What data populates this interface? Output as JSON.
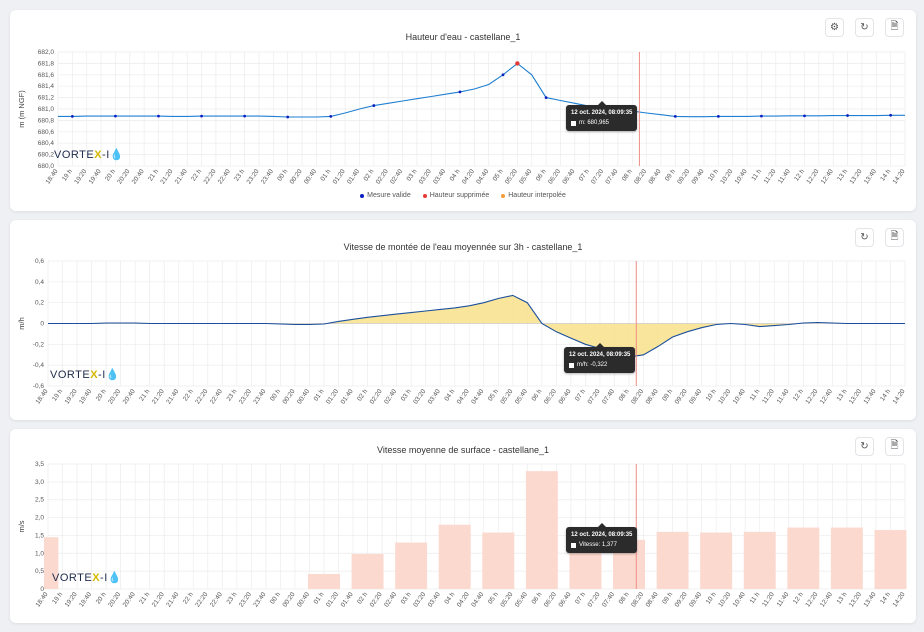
{
  "toolbar": {
    "settings_icon": "gear-icon",
    "reset_icon": "refresh-icon",
    "export_icon": "document-icon"
  },
  "logo": {
    "part1": "VORTE",
    "part2": "X",
    "part3": "-I",
    "drop": "💧"
  },
  "colors": {
    "line": "#1f7fd1",
    "valid": "#0a1fbf",
    "deleted": "#e53935",
    "interp": "#f39c3c",
    "area": "#f8e08a",
    "bar": "#fcd9cf",
    "cursor": "#ef8c86"
  },
  "tooltips": {
    "height": {
      "date": "12 oct. 2024, 08:09:35",
      "value": "m: 680,965"
    },
    "rise": {
      "date": "12 oct. 2024, 08:09:35",
      "value": "m/h: -0,322"
    },
    "speed": {
      "date": "12 oct. 2024, 08:09:35",
      "value": "Vitesse: 1,377"
    }
  },
  "chart_data": [
    {
      "type": "line",
      "title": "Hauteur d'eau - castellane_1",
      "ylabel": "m (m NGF)",
      "ylim": [
        680.0,
        682.0
      ],
      "yticks": [
        "680,0",
        "680,2",
        "680,4",
        "680,6",
        "680,8",
        "681,0",
        "681,2",
        "681,4",
        "681,6",
        "681,8",
        "682,0"
      ],
      "categories": [
        "18:40",
        "19 h",
        "19:20",
        "19:40",
        "20 h",
        "20:20",
        "20:40",
        "21 h",
        "21:20",
        "21:40",
        "22 h",
        "22:20",
        "22:40",
        "23 h",
        "23:20",
        "23:40",
        "00 h",
        "00:20",
        "00:40",
        "01 h",
        "01:20",
        "01:40",
        "02 h",
        "02:20",
        "02:40",
        "03 h",
        "03:20",
        "03:40",
        "04 h",
        "04:20",
        "04:40",
        "05 h",
        "05:20",
        "05:40",
        "06 h",
        "06:20",
        "06:40",
        "07 h",
        "07:20",
        "07:40",
        "08 h",
        "08:20",
        "08:40",
        "09 h",
        "09:20",
        "09:40",
        "10 h",
        "10:20",
        "10:40",
        "11 h",
        "11:20",
        "11:40",
        "12 h",
        "12:20",
        "12:40",
        "13 h",
        "13:20",
        "13:40",
        "14 h",
        "14:20"
      ],
      "series": [
        {
          "name": "Hauteur",
          "values": [
            680.87,
            680.87,
            680.875,
            680.875,
            680.875,
            680.875,
            680.875,
            680.875,
            680.87,
            680.87,
            680.875,
            680.875,
            680.875,
            680.875,
            680.875,
            680.87,
            680.86,
            680.86,
            680.86,
            680.87,
            680.93,
            681.0,
            681.06,
            681.1,
            681.14,
            681.18,
            681.22,
            681.26,
            681.3,
            681.35,
            681.43,
            681.6,
            681.8,
            681.6,
            681.2,
            681.15,
            681.1,
            681.05,
            681.0,
            680.98,
            680.965,
            680.93,
            680.9,
            680.87,
            680.865,
            680.865,
            680.87,
            680.87,
            680.87,
            680.875,
            680.875,
            680.88,
            680.88,
            680.88,
            680.885,
            680.885,
            680.885,
            680.885,
            680.89,
            680.89
          ],
          "markers": [
            1,
            4,
            7,
            10,
            13,
            16,
            19,
            22,
            28,
            31,
            32,
            34,
            40,
            43,
            46,
            49,
            52,
            55,
            58
          ]
        }
      ],
      "highlight_index": 32,
      "cursor_index": 41,
      "legend": [
        "Mesure valide",
        "Hauteur supprimée",
        "Hauteur interpolée"
      ]
    },
    {
      "type": "area",
      "title": "Vitesse de montée de l'eau moyennée sur 3h - castellane_1",
      "ylabel": "m/h",
      "ylim": [
        -0.6,
        0.6
      ],
      "yticks": [
        "-0,6",
        "-0,4",
        "-0,2",
        "0",
        "0,2",
        "0,4",
        "0,6"
      ],
      "categories": [
        "18:40",
        "19 h",
        "19:20",
        "19:40",
        "20 h",
        "20:20",
        "20:40",
        "21 h",
        "21:20",
        "21:40",
        "22 h",
        "22:20",
        "22:40",
        "23 h",
        "23:20",
        "23:40",
        "00 h",
        "00:20",
        "00:40",
        "01 h",
        "01:20",
        "01:40",
        "02 h",
        "02:20",
        "02:40",
        "03 h",
        "03:20",
        "03:40",
        "04 h",
        "04:20",
        "04:40",
        "05 h",
        "05:20",
        "05:40",
        "06 h",
        "06:20",
        "06:40",
        "07 h",
        "07:20",
        "07:40",
        "08 h",
        "08:20",
        "08:40",
        "09 h",
        "09:20",
        "09:40",
        "10 h",
        "10:20",
        "10:40",
        "11 h",
        "11:20",
        "11:40",
        "12 h",
        "12:20",
        "12:40",
        "13 h",
        "13:20",
        "13:40",
        "14 h",
        "14:20"
      ],
      "series": [
        {
          "name": "m/h",
          "values": [
            0,
            0,
            0,
            0,
            0.005,
            0.005,
            0.005,
            0,
            0,
            0,
            0,
            0,
            0,
            0,
            0,
            0,
            -0.005,
            -0.01,
            -0.01,
            -0.005,
            0.02,
            0.04,
            0.06,
            0.075,
            0.09,
            0.105,
            0.12,
            0.135,
            0.15,
            0.17,
            0.2,
            0.24,
            0.27,
            0.2,
            0.0,
            -0.08,
            -0.14,
            -0.2,
            -0.24,
            -0.28,
            -0.322,
            -0.3,
            -0.22,
            -0.13,
            -0.08,
            -0.04,
            -0.01,
            0,
            -0.01,
            -0.03,
            -0.02,
            -0.01,
            0.005,
            0.01,
            0.005,
            0,
            0,
            0,
            0,
            0
          ]
        }
      ],
      "cursor_index": 41
    },
    {
      "type": "bar",
      "title": "Vitesse moyenne de surface - castellane_1",
      "ylabel": "m/s",
      "ylim": [
        0,
        3.5
      ],
      "yticks": [
        "0",
        "0,5",
        "1,0",
        "1,5",
        "2,0",
        "2,5",
        "3,0",
        "3,5"
      ],
      "categories": [
        "18:40",
        "19 h",
        "19:20",
        "19:40",
        "20 h",
        "20:20",
        "20:40",
        "21 h",
        "21:20",
        "21:40",
        "22 h",
        "22:20",
        "22:40",
        "23 h",
        "23:20",
        "23:40",
        "00 h",
        "00:20",
        "00:40",
        "01 h",
        "01:20",
        "01:40",
        "02 h",
        "02:20",
        "02:40",
        "03 h",
        "03:20",
        "03:40",
        "04 h",
        "04:20",
        "04:40",
        "05 h",
        "05:20",
        "05:40",
        "06 h",
        "06:20",
        "06:40",
        "07 h",
        "07:20",
        "07:40",
        "08 h",
        "08:20",
        "08:40",
        "09 h",
        "09:20",
        "09:40",
        "10 h",
        "10:20",
        "10:40",
        "11 h",
        "11:20",
        "11:40",
        "12 h",
        "12:20",
        "12:40",
        "13 h",
        "13:20",
        "13:40",
        "14 h",
        "14:20"
      ],
      "bars": [
        {
          "index": 0,
          "value": 1.45
        },
        {
          "index": 19,
          "value": 0.42
        },
        {
          "index": 22,
          "value": 0.98
        },
        {
          "index": 25,
          "value": 1.3
        },
        {
          "index": 28,
          "value": 1.8
        },
        {
          "index": 31,
          "value": 1.58
        },
        {
          "index": 34,
          "value": 3.3
        },
        {
          "index": 37,
          "value": 1.3
        },
        {
          "index": 40,
          "value": 1.377
        },
        {
          "index": 43,
          "value": 1.6
        },
        {
          "index": 46,
          "value": 1.58
        },
        {
          "index": 49,
          "value": 1.6
        },
        {
          "index": 52,
          "value": 1.72
        },
        {
          "index": 55,
          "value": 1.72
        },
        {
          "index": 58,
          "value": 1.65
        }
      ],
      "cursor_index": 41
    }
  ]
}
